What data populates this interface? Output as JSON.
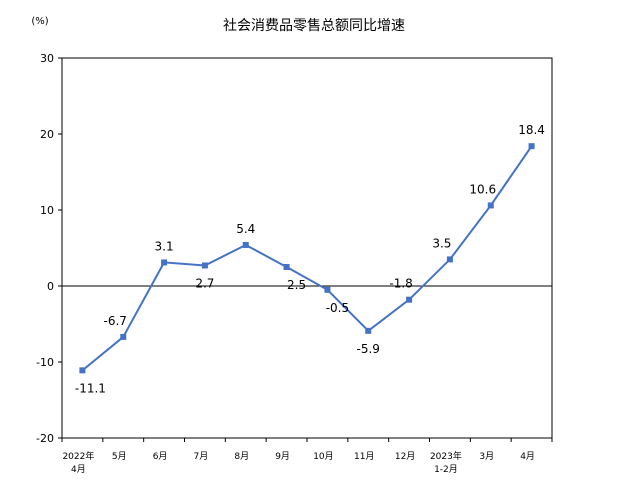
{
  "chart_data": {
    "type": "line",
    "title": "社会消费品零售总额同比增速",
    "ylabel": "(%)",
    "xlabel": "",
    "ylim": [
      -20,
      30
    ],
    "yticks": [
      -20,
      -10,
      0,
      10,
      20,
      30
    ],
    "grid": false,
    "legend": "none",
    "categories": [
      [
        "2022年",
        "4月"
      ],
      [
        "5月"
      ],
      [
        "6月"
      ],
      [
        "7月"
      ],
      [
        "8月"
      ],
      [
        "9月"
      ],
      [
        "10月"
      ],
      [
        "11月"
      ],
      [
        "12月"
      ],
      [
        "2023年",
        "1-2月"
      ],
      [
        "3月"
      ],
      [
        "4月"
      ]
    ],
    "values": [
      -11.1,
      -6.7,
      3.1,
      2.7,
      5.4,
      2.5,
      -0.5,
      -5.9,
      -1.8,
      3.5,
      10.6,
      18.4
    ],
    "data_labels": [
      "-11.1",
      "-6.7",
      "3.1",
      "2.7",
      "5.4",
      "2.5",
      "-0.5",
      "-5.9",
      "-1.8",
      "3.5",
      "10.6",
      "18.4"
    ],
    "line_color": "#4472C4",
    "marker_color": "#4472C4"
  }
}
